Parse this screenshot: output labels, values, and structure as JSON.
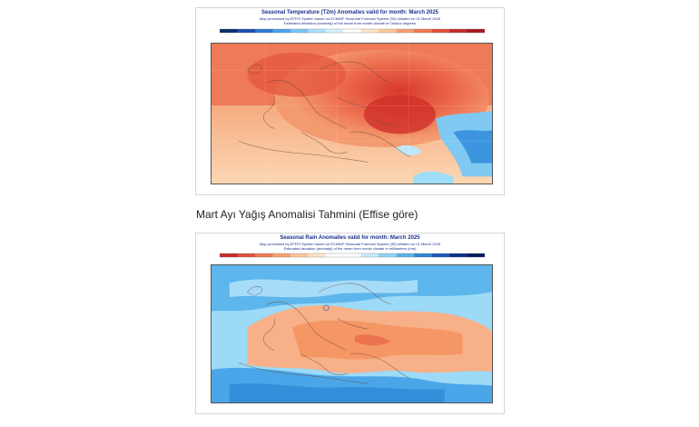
{
  "temperature_map": {
    "title": "Seasonal Temperature (T2m) Anomalies valid for month: March 2025",
    "subtitle1": "Map processed by EFFIS System based on ECMWF Seasonal Forecast System (S5) initiated on 01 March 2025",
    "subtitle2": "Estimated deviation (anomaly) of the mean from model climate in Celsius degrees",
    "colorbar_colors": [
      "#08306b",
      "#1c4fb0",
      "#2f7ad8",
      "#4aa3ee",
      "#79c6f5",
      "#a9e2fb",
      "#d5f3fe",
      "#ffffff",
      "#fde4c4",
      "#fcc79a",
      "#f8a06f",
      "#f07a50",
      "#e1503a",
      "#c62b2b",
      "#a51a1f"
    ]
  },
  "section_heading": "Mart Ayı Yağış Anomalisi Tahmini (Effise göre)",
  "rain_map": {
    "title": "Seasonal Rain Anomalies valid for month: March 2025",
    "subtitle1": "Map processed by EFFIS System based on ECMWF Seasonal Forecast System (S5) initiated on 01 March 2025",
    "subtitle2": "Estimated deviation (anomaly) of the mean from model climate in millimeters (mm)",
    "colorbar_colors": [
      "#c62b2b",
      "#e1503a",
      "#f07a50",
      "#f8a06f",
      "#fcc79a",
      "#fde4c4",
      "#ffffff",
      "#ffffff",
      "#c6ecfb",
      "#8fd3f5",
      "#58b3ea",
      "#2f86d6",
      "#1c58b8",
      "#0b2f8c",
      "#061c5e"
    ]
  }
}
